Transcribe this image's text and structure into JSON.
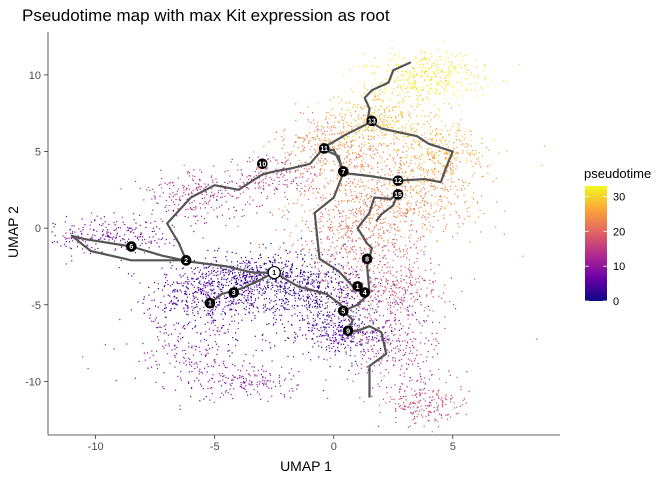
{
  "chart_data": {
    "type": "scatter",
    "title": "Pseudotime map with max Kit expression as root",
    "xlabel": "UMAP 1",
    "ylabel": "UMAP 2",
    "xlim": [
      -12,
      9.5
    ],
    "ylim": [
      -13.5,
      12.8
    ],
    "x_ticks": [
      -10,
      -5,
      0,
      5
    ],
    "y_ticks": [
      -10,
      -5,
      0,
      5,
      10
    ],
    "grid": false,
    "legend": {
      "title": "pseudotime",
      "placement": "right",
      "range": [
        0,
        33
      ],
      "ticks": [
        0,
        10,
        20,
        30
      ],
      "colors": [
        "#0d0887",
        "#6a00a8",
        "#b12a90",
        "#e16462",
        "#fca636",
        "#f0f921"
      ]
    },
    "clusters": [
      {
        "cx": -5.3,
        "cy": -4.3,
        "sx": 1.3,
        "sy": 1.2,
        "pt": 5,
        "n": 500
      },
      {
        "cx": -3.5,
        "cy": -3.2,
        "sx": 1.3,
        "sy": 0.8,
        "pt": 3,
        "n": 350
      },
      {
        "cx": -1.5,
        "cy": -3.5,
        "sx": 1.3,
        "sy": 1.0,
        "pt": 2,
        "n": 350
      },
      {
        "cx": 0.0,
        "cy": -5.5,
        "sx": 1.6,
        "sy": 1.5,
        "pt": 3,
        "n": 450
      },
      {
        "cx": 0.5,
        "cy": -7.0,
        "sx": 1.0,
        "sy": 0.5,
        "pt": 6,
        "n": 150
      },
      {
        "cx": -9.5,
        "cy": -0.5,
        "sx": 1.5,
        "sy": 0.6,
        "pt": 8,
        "n": 250
      },
      {
        "cx": -6.0,
        "cy": -8.0,
        "sx": 1.3,
        "sy": 1.2,
        "pt": 9,
        "n": 200
      },
      {
        "cx": -3.5,
        "cy": -10.0,
        "sx": 1.2,
        "sy": 0.5,
        "pt": 10,
        "n": 150
      },
      {
        "cx": -5.5,
        "cy": 2.2,
        "sx": 1.3,
        "sy": 0.8,
        "pt": 13,
        "n": 250
      },
      {
        "cx": -2.5,
        "cy": 3.5,
        "sx": 1.0,
        "sy": 0.7,
        "pt": 15,
        "n": 150
      },
      {
        "cx": 2.5,
        "cy": -8.0,
        "sx": 1.0,
        "sy": 1.5,
        "pt": 14,
        "n": 250
      },
      {
        "cx": 3.8,
        "cy": -11.5,
        "sx": 0.8,
        "sy": 0.7,
        "pt": 17,
        "n": 200
      },
      {
        "cx": 2.2,
        "cy": -4.0,
        "sx": 1.3,
        "sy": 1.0,
        "pt": 17,
        "n": 300
      },
      {
        "cx": 1.0,
        "cy": -0.5,
        "sx": 1.5,
        "sy": 1.8,
        "pt": 20,
        "n": 500
      },
      {
        "cx": 2.5,
        "cy": 2.5,
        "sx": 2.0,
        "sy": 1.5,
        "pt": 24,
        "n": 700
      },
      {
        "cx": 0.0,
        "cy": 5.5,
        "sx": 1.2,
        "sy": 1.0,
        "pt": 23,
        "n": 300
      },
      {
        "cx": 4.5,
        "cy": 5.0,
        "sx": 0.9,
        "sy": 1.0,
        "pt": 27,
        "n": 250
      },
      {
        "cx": 2.0,
        "cy": 7.0,
        "sx": 1.2,
        "sy": 1.0,
        "pt": 28,
        "n": 350
      },
      {
        "cx": 4.0,
        "cy": 10.0,
        "sx": 1.2,
        "sy": 0.8,
        "pt": 32,
        "n": 350
      },
      {
        "cx": 8.5,
        "cy": -7.2,
        "sx": 0.02,
        "sy": 0.02,
        "pt": 10,
        "n": 1
      }
    ],
    "trajectory": [
      [
        [
          -5.2,
          -4.9
        ],
        [
          -4.7,
          -4.3
        ],
        [
          -3.8,
          -3.9
        ],
        [
          -3.0,
          -3.3
        ],
        [
          -2.5,
          -2.9
        ]
      ],
      [
        [
          -2.5,
          -2.9
        ],
        [
          -3.4,
          -2.9
        ],
        [
          -4.5,
          -2.5
        ],
        [
          -6.0,
          -2.2
        ],
        [
          -7.2,
          -1.8
        ],
        [
          -8.5,
          -1.2
        ],
        [
          -10.5,
          -0.7
        ],
        [
          -11.0,
          -0.5
        ],
        [
          -10.2,
          -1.5
        ],
        [
          -8.5,
          -2.1
        ],
        [
          -6.2,
          -2.1
        ]
      ],
      [
        [
          -6.2,
          -2.1
        ],
        [
          -6.5,
          -1.0
        ],
        [
          -7.0,
          0.3
        ],
        [
          -6.0,
          2.0
        ],
        [
          -5.0,
          2.8
        ],
        [
          -4.0,
          2.5
        ],
        [
          -3.0,
          3.5
        ],
        [
          -2.5,
          3.7
        ],
        [
          -1.8,
          3.9
        ],
        [
          -1.0,
          4.2
        ],
        [
          -0.5,
          5.1
        ],
        [
          0.0,
          5.1
        ],
        [
          0.4,
          3.8
        ]
      ],
      [
        [
          -2.5,
          -2.9
        ],
        [
          -1.5,
          -3.8
        ],
        [
          -0.3,
          -4.3
        ],
        [
          0.3,
          -5.0
        ],
        [
          0.4,
          -5.4
        ]
      ],
      [
        [
          0.4,
          -5.4
        ],
        [
          0.8,
          -6.0
        ],
        [
          0.6,
          -6.7
        ],
        [
          1.0,
          -6.7
        ],
        [
          1.5,
          -6.4
        ],
        [
          2.0,
          -6.8
        ],
        [
          2.2,
          -8.2
        ],
        [
          1.5,
          -9.0
        ],
        [
          1.5,
          -10.0
        ],
        [
          1.5,
          -11.0
        ]
      ],
      [
        [
          0.4,
          -5.4
        ],
        [
          1.0,
          -5.0
        ],
        [
          1.4,
          -4.4
        ],
        [
          1.5,
          -4.2
        ],
        [
          1.4,
          -2.5
        ],
        [
          1.6,
          -1.3
        ],
        [
          1.4,
          -1.0
        ],
        [
          1.0,
          0.0
        ],
        [
          1.5,
          1.0
        ],
        [
          1.7,
          2.0
        ],
        [
          2.4,
          1.9
        ],
        [
          2.7,
          2.3
        ]
      ],
      [
        [
          1.5,
          -4.2
        ],
        [
          0.8,
          -3.8
        ],
        [
          0.2,
          -2.8
        ],
        [
          -0.6,
          -2.0
        ],
        [
          -0.7,
          -0.5
        ],
        [
          -0.8,
          1.0
        ],
        [
          0.0,
          2.0
        ],
        [
          0.4,
          3.6
        ]
      ],
      [
        [
          0.4,
          3.6
        ],
        [
          1.5,
          3.4
        ],
        [
          2.7,
          3.1
        ],
        [
          3.8,
          3.2
        ],
        [
          4.5,
          3.0
        ],
        [
          4.7,
          3.9
        ],
        [
          5.0,
          5.0
        ],
        [
          4.0,
          5.5
        ],
        [
          3.5,
          6.0
        ],
        [
          2.0,
          6.5
        ],
        [
          1.6,
          6.9
        ]
      ],
      [
        [
          0.4,
          3.6
        ],
        [
          0.2,
          4.7
        ],
        [
          -0.5,
          5.2
        ],
        [
          0.5,
          6.1
        ],
        [
          1.4,
          6.8
        ]
      ],
      [
        [
          1.4,
          6.8
        ],
        [
          1.5,
          7.8
        ],
        [
          1.3,
          8.5
        ],
        [
          1.6,
          9.0
        ],
        [
          2.3,
          9.5
        ],
        [
          2.5,
          10.3
        ],
        [
          3.2,
          10.8
        ]
      ],
      [
        [
          2.7,
          2.3
        ],
        [
          2.5,
          1.5
        ],
        [
          2.0,
          0.9
        ],
        [
          1.8,
          0.5
        ]
      ]
    ],
    "nodes": [
      {
        "label": "1",
        "x": -5.2,
        "y": -4.9
      },
      {
        "label": "2",
        "x": -6.2,
        "y": -2.1
      },
      {
        "label": "3",
        "x": -4.2,
        "y": -4.2
      },
      {
        "label": "4",
        "x": 1.3,
        "y": -4.2
      },
      {
        "label": "5",
        "x": 0.4,
        "y": -5.4
      },
      {
        "label": "6",
        "x": -8.5,
        "y": -1.2
      },
      {
        "label": "7",
        "x": 0.4,
        "y": 3.7
      },
      {
        "label": "8",
        "x": 1.4,
        "y": -2.0
      },
      {
        "label": "9",
        "x": 0.6,
        "y": -6.7
      },
      {
        "label": "10",
        "x": -3.0,
        "y": 4.2
      },
      {
        "label": "11",
        "x": -0.4,
        "y": 5.2
      },
      {
        "label": "12",
        "x": 2.7,
        "y": 3.1
      },
      {
        "label": "13",
        "x": 1.6,
        "y": 7.0
      },
      {
        "label": "15",
        "x": 2.7,
        "y": 2.2
      },
      {
        "label": "1",
        "x": -2.5,
        "y": -2.9,
        "root": true
      },
      {
        "label": "1",
        "x": 1.0,
        "y": -3.8
      }
    ]
  }
}
